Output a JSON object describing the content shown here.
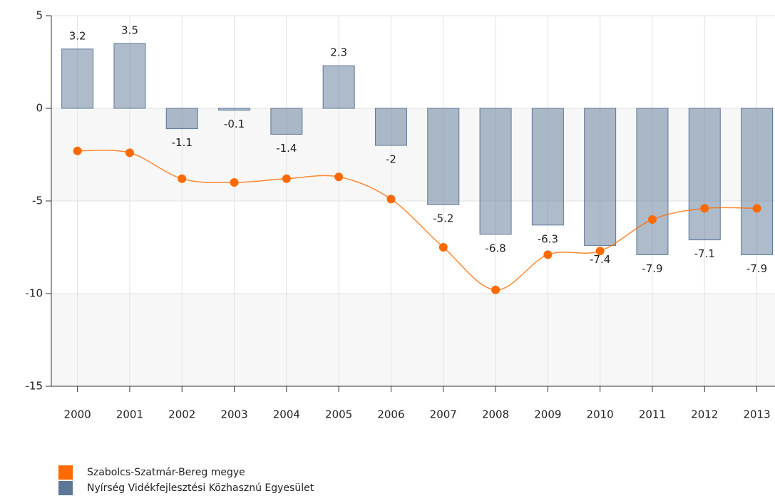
{
  "chart_data": {
    "type": "combo",
    "categories": [
      "2000",
      "2001",
      "2002",
      "2003",
      "2004",
      "2005",
      "2006",
      "2007",
      "2008",
      "2009",
      "2010",
      "2011",
      "2012",
      "2013"
    ],
    "series": [
      {
        "name": "Szabolcs-Szatmár-Bereg megye",
        "type": "line",
        "color": "#ff6a00",
        "values": [
          -2.3,
          -2.4,
          -3.8,
          -4.0,
          -3.8,
          -3.7,
          -4.9,
          -7.5,
          -9.8,
          -7.9,
          -7.7,
          -6.0,
          -5.4,
          -5.4
        ]
      },
      {
        "name": "Nyírség Vidékfejlesztési Közhasznú Egyesület",
        "type": "bar",
        "color": "#5d7797",
        "values": [
          3.2,
          3.5,
          -1.1,
          -0.1,
          -1.4,
          2.3,
          -2,
          -5.2,
          -6.8,
          -6.3,
          -7.4,
          -7.9,
          -7.1,
          -7.9
        ]
      }
    ],
    "ylim": [
      -15,
      5
    ],
    "yticks": [
      5,
      0,
      -5,
      -10,
      -15
    ],
    "grid": true
  }
}
